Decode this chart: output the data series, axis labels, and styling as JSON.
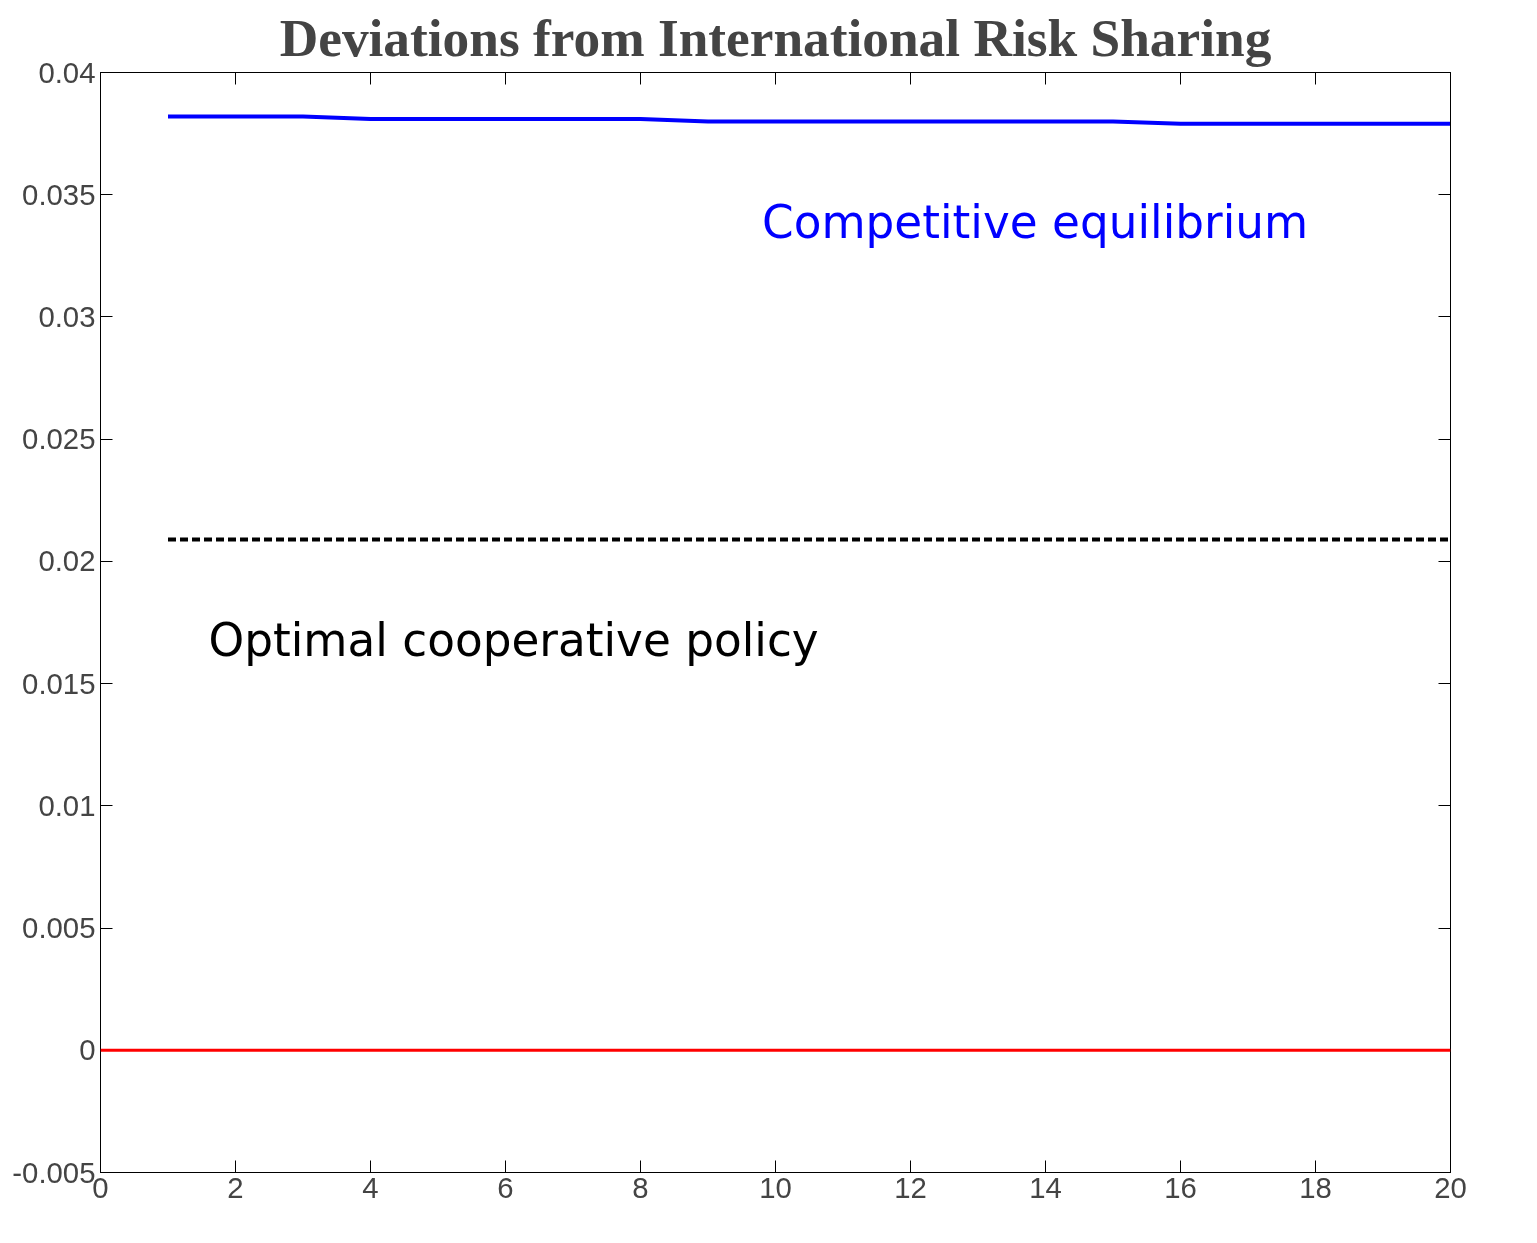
{
  "chart_data": {
    "type": "line",
    "title": "Deviations from International Risk Sharing",
    "x": [
      1,
      2,
      3,
      4,
      5,
      6,
      7,
      8,
      9,
      10,
      11,
      12,
      13,
      14,
      15,
      16,
      17,
      18,
      19,
      20
    ],
    "series": [
      {
        "name": "Competitive equilibrium",
        "color": "#0000ff",
        "line_style": "solid",
        "values": [
          0.0382,
          0.0382,
          0.0382,
          0.0381,
          0.0381,
          0.0381,
          0.0381,
          0.0381,
          0.038,
          0.038,
          0.038,
          0.038,
          0.038,
          0.038,
          0.038,
          0.0379,
          0.0379,
          0.0379,
          0.0379,
          0.0379
        ]
      },
      {
        "name": "Optimal cooperative policy",
        "color": "#000000",
        "line_style": "dashed",
        "values": [
          0.0209,
          0.0209,
          0.0209,
          0.0209,
          0.0209,
          0.0209,
          0.0209,
          0.0209,
          0.0209,
          0.0209,
          0.0209,
          0.0209,
          0.0209,
          0.0209,
          0.0209,
          0.0209,
          0.0209,
          0.0209,
          0.0209,
          0.0209
        ]
      }
    ],
    "ref_lines": [
      {
        "axis": "y",
        "value": 0,
        "color": "#ff0000"
      }
    ],
    "xlim": [
      0,
      20
    ],
    "ylim": [
      -0.005,
      0.04
    ],
    "xticks": [
      0,
      2,
      4,
      6,
      8,
      10,
      12,
      14,
      16,
      18,
      20
    ],
    "yticks": [
      -0.005,
      0,
      0.005,
      0.01,
      0.015,
      0.02,
      0.025,
      0.03,
      0.035,
      0.04
    ],
    "grid": false
  }
}
